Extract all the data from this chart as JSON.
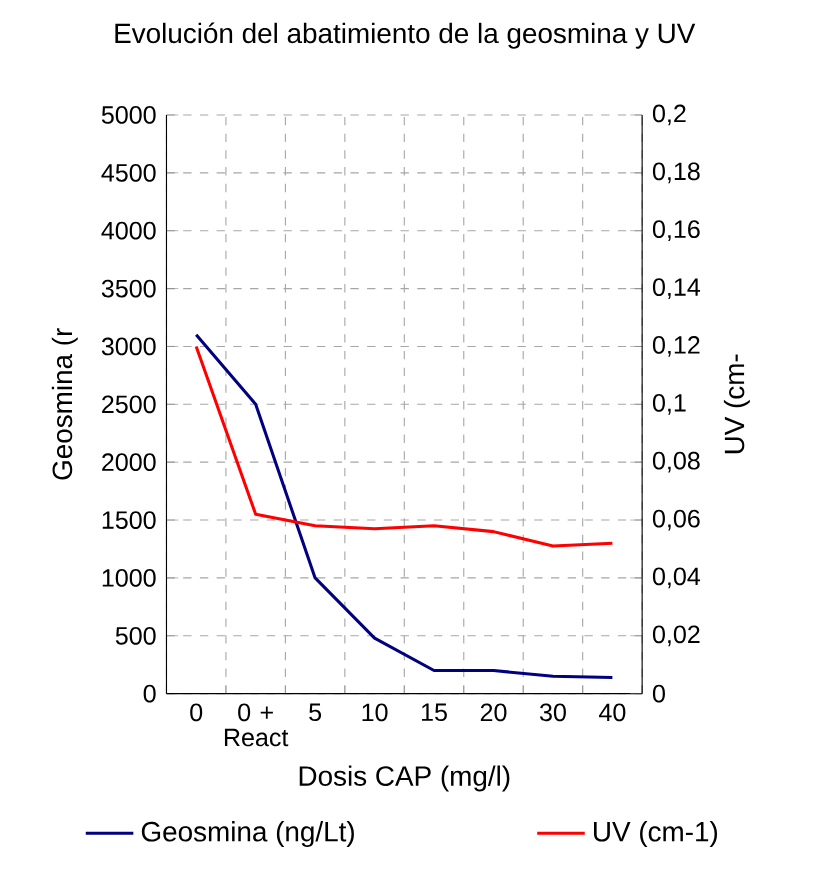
{
  "chart_data": {
    "type": "line",
    "title": "Evolución del abatimiento de la geosmina y UV",
    "xlabel": "Dosis CAP (mg/l)",
    "ylabel": "Geosmina (r",
    "y2label": "UV (cm-",
    "categories": [
      "0",
      "0 + React",
      "5",
      "10",
      "15",
      "20",
      "30",
      "40"
    ],
    "series": [
      {
        "name": "Geosmina (ng/Lt)",
        "color": "#000080",
        "values": [
          3100,
          2500,
          1000,
          480,
          200,
          200,
          150,
          140
        ]
      },
      {
        "name": "UV (cm-1)",
        "color": "#ff0000",
        "axis": "y2",
        "values": [
          0.12,
          0.062,
          0.058,
          0.057,
          0.058,
          0.056,
          0.051,
          0.052
        ]
      }
    ],
    "ylim": [
      0,
      5000
    ],
    "yticks": [
      0,
      500,
      1000,
      1500,
      2000,
      2500,
      3000,
      3500,
      4000,
      4500,
      5000
    ],
    "y2lim": [
      0,
      0.2
    ],
    "y2ticks": [
      {
        "value": 0,
        "label": "0"
      },
      {
        "value": 0.02,
        "label": "0,02"
      },
      {
        "value": 0.04,
        "label": "0,04"
      },
      {
        "value": 0.06,
        "label": "0,06"
      },
      {
        "value": 0.08,
        "label": "0,08"
      },
      {
        "value": 0.1,
        "label": "0,1"
      },
      {
        "value": 0.12,
        "label": "0,12"
      },
      {
        "value": 0.14,
        "label": "0,14"
      },
      {
        "value": 0.16,
        "label": "0,16"
      },
      {
        "value": 0.18,
        "label": "0,18"
      },
      {
        "value": 0.2,
        "label": "0,2"
      }
    ],
    "grid": true,
    "legend": "bottom",
    "marker": "none",
    "line_style": "solid"
  }
}
